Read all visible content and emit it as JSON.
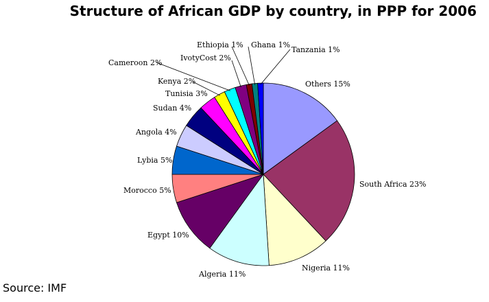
{
  "chart_data": {
    "type": "pie",
    "title": "Structure of African GDP by country, in PPP for 2006",
    "source": "Source: IMF",
    "slices": [
      {
        "label": "Others 15%",
        "value": 15,
        "color": "#9999ff"
      },
      {
        "label": "South Africa 23%",
        "value": 23,
        "color": "#993366"
      },
      {
        "label": "Nigeria 11%",
        "value": 11,
        "color": "#ffffcc"
      },
      {
        "label": "Algeria 11%",
        "value": 11,
        "color": "#ccffff"
      },
      {
        "label": "Egypt 10%",
        "value": 10,
        "color": "#660066"
      },
      {
        "label": "Morocco 5%",
        "value": 5,
        "color": "#ff8080"
      },
      {
        "label": "Lybia 5%",
        "value": 5,
        "color": "#0066cc"
      },
      {
        "label": "Angola 4%",
        "value": 4,
        "color": "#ccccff"
      },
      {
        "label": "Sudan 4%",
        "value": 4,
        "color": "#000080"
      },
      {
        "label": "Tunisia 3%",
        "value": 3,
        "color": "#ff00ff"
      },
      {
        "label": "Kenya 2%",
        "value": 2,
        "color": "#ffff00"
      },
      {
        "label": "Cameroon 2%",
        "value": 2,
        "color": "#00ffff"
      },
      {
        "label": "IvotyCost 2%",
        "value": 2,
        "color": "#800080"
      },
      {
        "label": "Ethiopia 1%",
        "value": 1,
        "color": "#800000"
      },
      {
        "label": "Ghana 1%",
        "value": 1,
        "color": "#008080"
      },
      {
        "label": "Tanzania 1%",
        "value": 1,
        "color": "#0000ff"
      }
    ]
  }
}
